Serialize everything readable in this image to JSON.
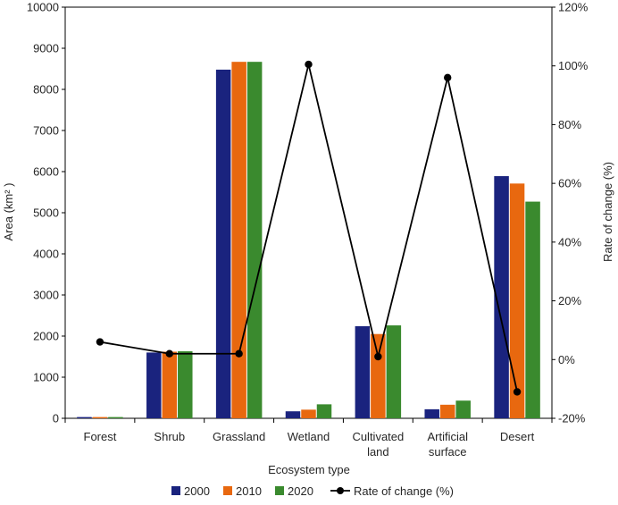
{
  "chart_data": {
    "type": "bar",
    "categories": [
      [
        "Forest"
      ],
      [
        "Shrub"
      ],
      [
        "Grassland"
      ],
      [
        "Wetland"
      ],
      [
        "Cultivated",
        "land"
      ],
      [
        "Artificial",
        "surface"
      ],
      [
        "Desert"
      ]
    ],
    "series": [
      {
        "name": "2000",
        "color": "#1a237e",
        "values": [
          30,
          1600,
          8480,
          170,
          2240,
          220,
          5890
        ]
      },
      {
        "name": "2010",
        "color": "#e8680f",
        "values": [
          30,
          1620,
          8670,
          210,
          2050,
          330,
          5710
        ]
      },
      {
        "name": "2020",
        "color": "#3a8a2e",
        "values": [
          30,
          1630,
          8670,
          340,
          2260,
          430,
          5270
        ]
      }
    ],
    "line": {
      "name": "Rate of change (%)",
      "color": "#000000",
      "values": [
        6,
        2,
        2,
        100.5,
        1,
        96,
        -11
      ]
    },
    "xlabel": "Ecosystem type",
    "ylabel": "Area (km² )",
    "y2label": "Rate of change (%)",
    "ylim": [
      0,
      10000
    ],
    "yticks": [
      0,
      1000,
      2000,
      3000,
      4000,
      5000,
      6000,
      7000,
      8000,
      9000,
      10000
    ],
    "y2lim": [
      -20,
      120
    ],
    "y2ticks": [
      "-20%",
      "0%",
      "20%",
      "40%",
      "60%",
      "80%",
      "100%",
      "120%"
    ],
    "legend_position": "bottom",
    "grid": false
  }
}
